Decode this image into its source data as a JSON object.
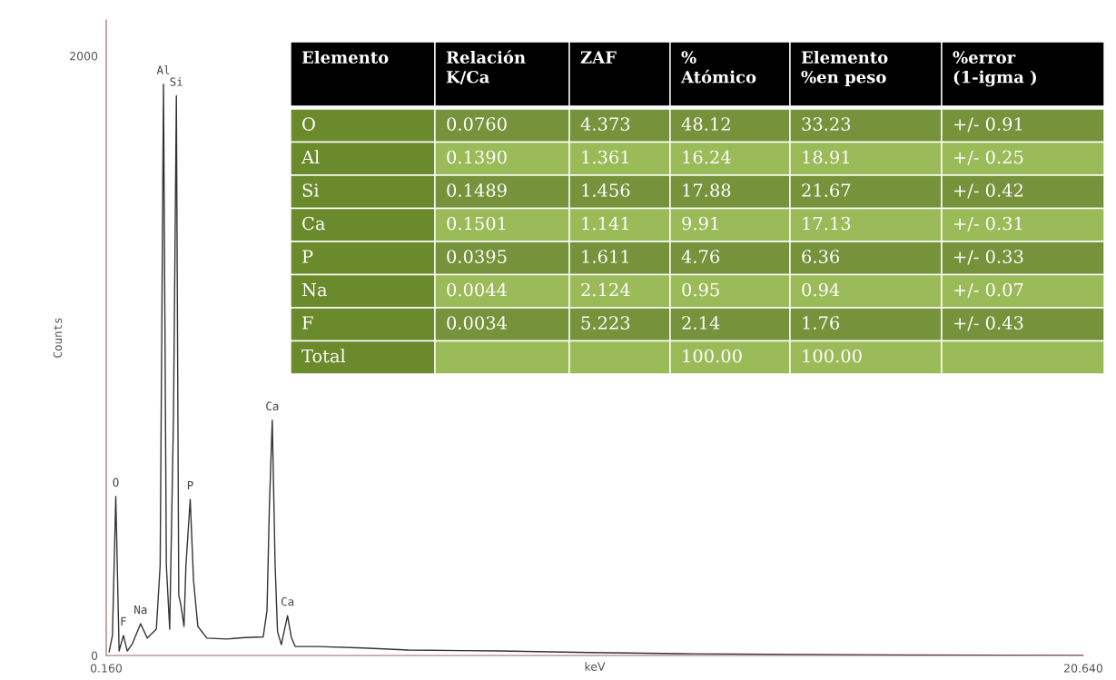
{
  "chart_data": [
    {
      "type": "line",
      "xlabel": "keV",
      "ylabel": "Counts",
      "xlim": [
        0.16,
        20.64
      ],
      "ylim": [
        0,
        2120
      ],
      "xticks": [
        {
          "value": 0.16,
          "label": "0.160"
        },
        {
          "value": 20.64,
          "label": "20.640"
        }
      ],
      "yticks": [
        0,
        2000
      ],
      "grid": false,
      "legend": false,
      "marker": "none",
      "line_style": "solid",
      "series": [
        {
          "color": "#333333",
          "x": [
            0.22,
            0.29,
            0.36,
            0.43,
            0.52,
            0.6,
            0.71,
            0.88,
            1.02,
            1.21,
            1.29,
            1.36,
            1.42,
            1.49,
            1.57,
            1.63,
            1.68,
            1.72,
            1.79,
            1.83,
            1.92,
            1.99,
            2.08,
            2.27,
            2.69,
            3.07,
            3.45,
            3.53,
            3.58,
            3.64,
            3.7,
            3.75,
            3.83,
            3.96,
            4.04,
            4.12,
            4.59,
            5.55,
            6.5,
            8.4,
            10.3,
            12.21,
            14.11,
            16.97,
            20.64
          ],
          "values": [
            12,
            67,
            531,
            15,
            67,
            15,
            40,
            106,
            58,
            88,
            300,
            1906,
            300,
            88,
            800,
            1867,
            200,
            173,
            97,
            300,
            521,
            250,
            97,
            58,
            55,
            60,
            62,
            150,
            500,
            785,
            300,
            80,
            36,
            133,
            60,
            30,
            30,
            25,
            18,
            15,
            10,
            6,
            4,
            2,
            0
          ]
        }
      ],
      "annotations": [
        {
          "text": "O",
          "x": 0.36,
          "y": 531
        },
        {
          "text": "F",
          "x": 0.52,
          "y": 67
        },
        {
          "text": "Na",
          "x": 0.88,
          "y": 106
        },
        {
          "text": "Al",
          "x": 1.36,
          "y": 1906
        },
        {
          "text": "Si",
          "x": 1.63,
          "y": 1867
        },
        {
          "text": "P",
          "x": 1.92,
          "y": 521
        },
        {
          "text": "Ca",
          "x": 3.64,
          "y": 785
        },
        {
          "text": "Ca",
          "x": 3.96,
          "y": 133
        }
      ]
    },
    {
      "type": "other",
      "categories": [
        "Elemento",
        "Relación\nK/Ca",
        "ZAF",
        "%\nAtómico",
        "Elemento\n%en peso",
        "%error\n(1-igma )"
      ],
      "y_categories": [
        "O",
        "Al",
        "Si",
        "Ca",
        "P",
        "Na",
        "F",
        "Total"
      ],
      "cell_labels": [
        [
          "0.0760",
          "4.373",
          "48.12",
          "33.23",
          "+/- 0.91"
        ],
        [
          "0.1390",
          "1.361",
          "16.24",
          "18.91",
          "+/- 0.25"
        ],
        [
          "0.1489",
          "1.456",
          "17.88",
          "21.67",
          "+/- 0.42"
        ],
        [
          "0.1501",
          "1.141",
          "9.91",
          "17.13",
          "+/- 0.31"
        ],
        [
          "0.0395",
          "1.611",
          "4.76",
          "6.36",
          "+/- 0.33"
        ],
        [
          "0.0044",
          "2.124",
          "0.95",
          "0.94",
          "+/- 0.07"
        ],
        [
          "0.0034",
          "5.223",
          "2.14",
          "1.76",
          "+/- 0.43"
        ],
        [
          null,
          null,
          "100.00",
          "100.00",
          null
        ]
      ]
    }
  ]
}
